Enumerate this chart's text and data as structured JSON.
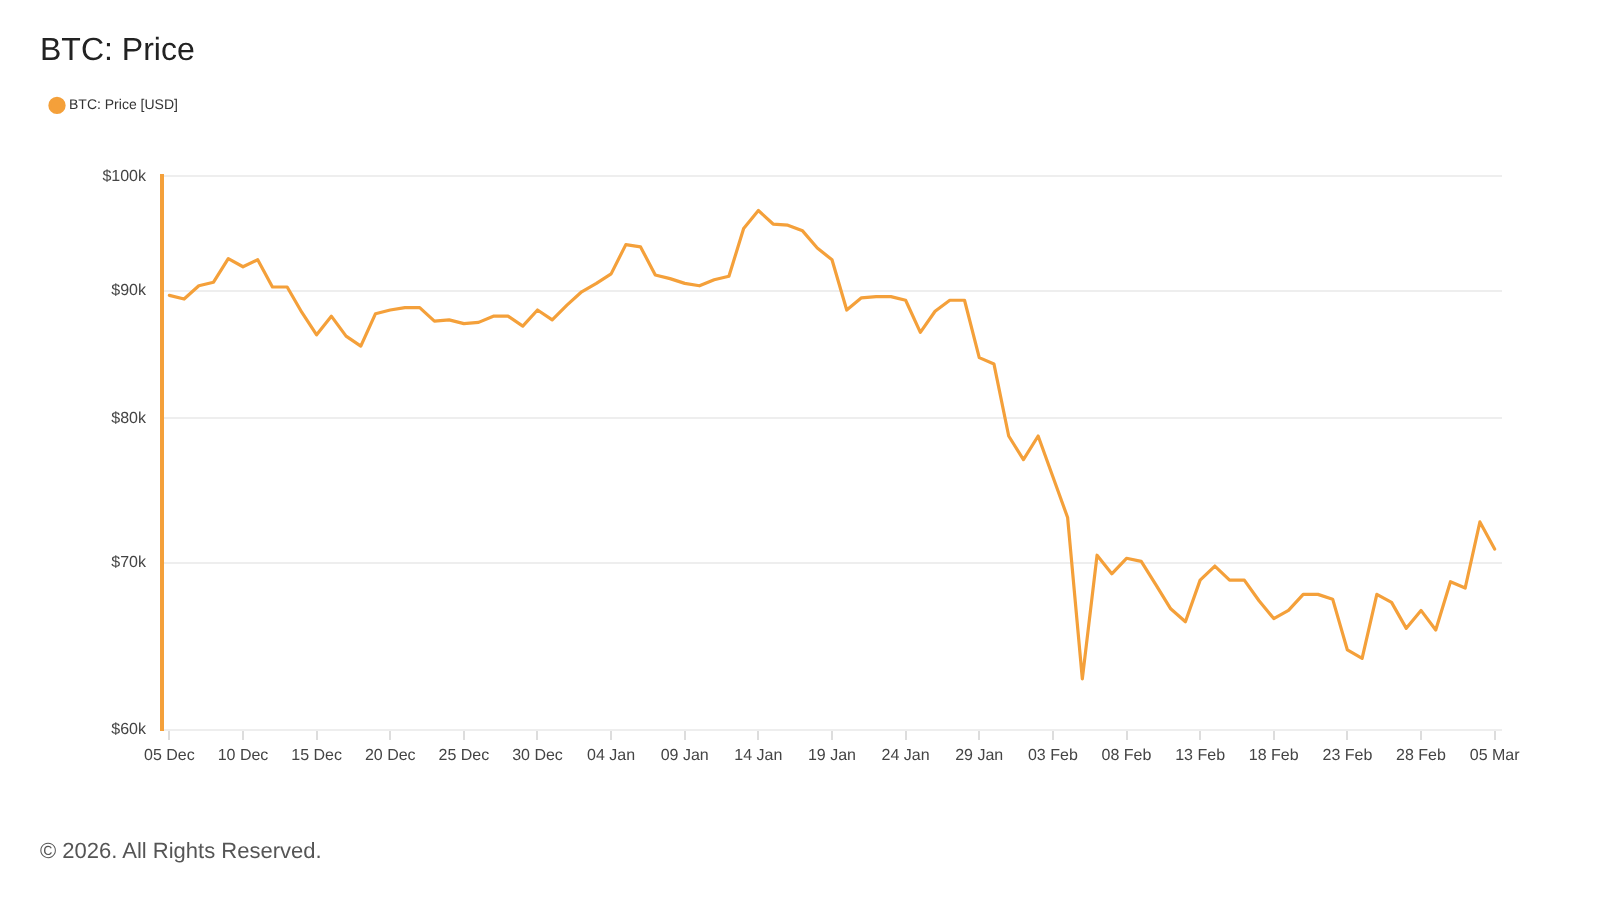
{
  "chart_data": {
    "type": "line",
    "title": "BTC: Price",
    "categories": [
      "05 Dec",
      null,
      null,
      null,
      null,
      "10 Dec",
      null,
      null,
      null,
      null,
      "15 Dec",
      null,
      null,
      null,
      null,
      "20 Dec",
      null,
      null,
      null,
      null,
      "25 Dec",
      null,
      null,
      null,
      null,
      "30 Dec",
      null,
      null,
      null,
      null,
      "04 Jan",
      null,
      null,
      null,
      null,
      "09 Jan",
      null,
      null,
      null,
      null,
      "14 Jan",
      null,
      null,
      null,
      null,
      "19 Jan",
      null,
      null,
      null,
      null,
      "24 Jan",
      null,
      null,
      null,
      null,
      "29 Jan",
      null,
      null,
      null,
      null,
      "03 Feb",
      null,
      null,
      null,
      null,
      "08 Feb",
      null,
      null,
      null,
      null,
      "13 Feb",
      null,
      null,
      null,
      null,
      "18 Feb",
      null,
      null,
      null,
      null,
      "23 Feb",
      null,
      null,
      null,
      null,
      "28 Feb",
      null,
      null,
      null,
      null,
      "05 Mar"
    ],
    "series": [
      {
        "name": "BTC: Price [USD]",
        "color": "#f4a03a",
        "values": [
          89600,
          89300,
          90400,
          90700,
          92700,
          92000,
          92600,
          90300,
          90300,
          88200,
          86400,
          87900,
          86300,
          85500,
          88100,
          88400,
          88600,
          88600,
          87500,
          87600,
          87300,
          87400,
          87900,
          87900,
          87100,
          88400,
          87600,
          88800,
          89900,
          90600,
          91400,
          93900,
          93700,
          91300,
          91000,
          90600,
          90400,
          90900,
          91200,
          95300,
          96900,
          95700,
          95600,
          95100,
          93600,
          92600,
          88400,
          89400,
          89500,
          89500,
          89200,
          86600,
          88300,
          89200,
          89200,
          84600,
          84100,
          78700,
          77000,
          78700,
          75800,
          73000,
          62900,
          70500,
          69300,
          70300,
          70100,
          68600,
          67100,
          66300,
          68900,
          69800,
          68900,
          68900,
          67600,
          66500,
          67000,
          68000,
          68000,
          67700,
          64600,
          64100,
          68000,
          67500,
          65900,
          67000,
          65800,
          68800,
          68400,
          72700,
          70900
        ]
      }
    ],
    "ylim": [
      60000,
      100000
    ],
    "yticks": [
      {
        "value": 60000,
        "label": "$60k"
      },
      {
        "value": 70000,
        "label": "$70k"
      },
      {
        "value": 80000,
        "label": "$80k"
      },
      {
        "value": 90000,
        "label": "$90k"
      },
      {
        "value": 100000,
        "label": "$100k"
      }
    ],
    "log": true,
    "grid": "y",
    "legend": "top left",
    "marker": "none",
    "annotations": [
      "© 2026. All Rights Reserved."
    ]
  }
}
